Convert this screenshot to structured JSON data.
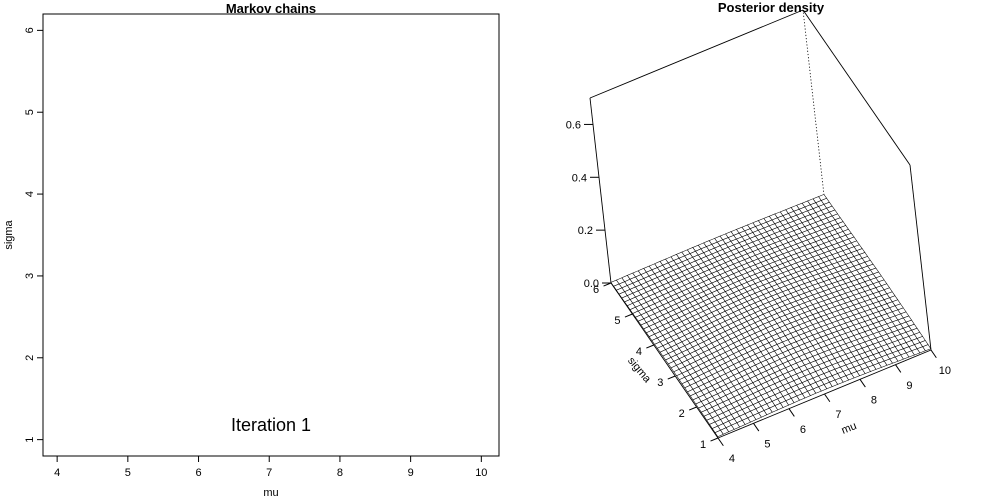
{
  "chart_data": [
    {
      "type": "scatter",
      "title": "Markov chains",
      "xlabel": "mu",
      "ylabel": "sigma",
      "xlim": [
        3.8,
        10.25
      ],
      "ylim": [
        0.8,
        6.2
      ],
      "x_ticks": [
        4,
        5,
        6,
        7,
        8,
        9,
        10
      ],
      "y_ticks": [
        1,
        2,
        3,
        4,
        5,
        6
      ],
      "series": [],
      "annotation": {
        "text": "Iteration  1",
        "x": 7,
        "y": 1.2
      }
    },
    {
      "type": "surface3d",
      "title": "Posterior density",
      "xlabel": "mu",
      "ylabel": "sigma",
      "zlabel": "",
      "xlim": [
        4,
        10
      ],
      "ylim": [
        1,
        6
      ],
      "zlim": [
        0,
        0.7
      ],
      "x_ticks": [
        4,
        5,
        6,
        7,
        8,
        9,
        10
      ],
      "y_ticks": [
        1,
        2,
        3,
        4,
        5,
        6
      ],
      "z_ticks": [
        0.0,
        0.2,
        0.4,
        0.6
      ],
      "z_tick_labels": [
        "0.0",
        "0.2",
        "0.4",
        "0.6"
      ],
      "grid_size": [
        40,
        40
      ]
    }
  ]
}
